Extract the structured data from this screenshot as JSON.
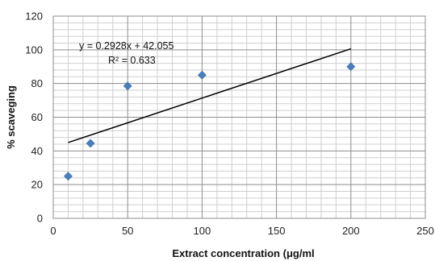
{
  "chart_data": {
    "type": "scatter",
    "xlabel": "Extract concentration (μg/ml",
    "ylabel": "% scaveging",
    "xlim": [
      0,
      250
    ],
    "ylim": [
      0,
      120
    ],
    "x_ticks": [
      0,
      50,
      100,
      150,
      200,
      250
    ],
    "y_ticks": [
      0,
      20,
      40,
      60,
      80,
      100,
      120
    ],
    "x_tick_labels": [
      "0",
      "50",
      "100",
      "150",
      "200",
      "250"
    ],
    "y_tick_labels": [
      "0",
      "20",
      "40",
      "60",
      "80",
      "100",
      "120"
    ],
    "grid": true,
    "legend": "none",
    "series": [
      {
        "x": [
          10,
          25,
          50,
          100,
          200
        ],
        "y": [
          25,
          44.5,
          78.5,
          85,
          90
        ],
        "marker": "diamond",
        "color": "#4a7ebb"
      }
    ],
    "trendline": {
      "type": "linear",
      "slope": 0.2928,
      "intercept": 42.055,
      "x_range": [
        10,
        200
      ],
      "color": "#000000"
    },
    "annotations": {
      "equation": "y = 0.2928x + 42.055",
      "r_squared": "R² = 0.633"
    },
    "colors": {
      "major_grid": "#8c8c8c",
      "minor_grid": "#cfcfcf",
      "marker": "#4a7ebb"
    }
  }
}
